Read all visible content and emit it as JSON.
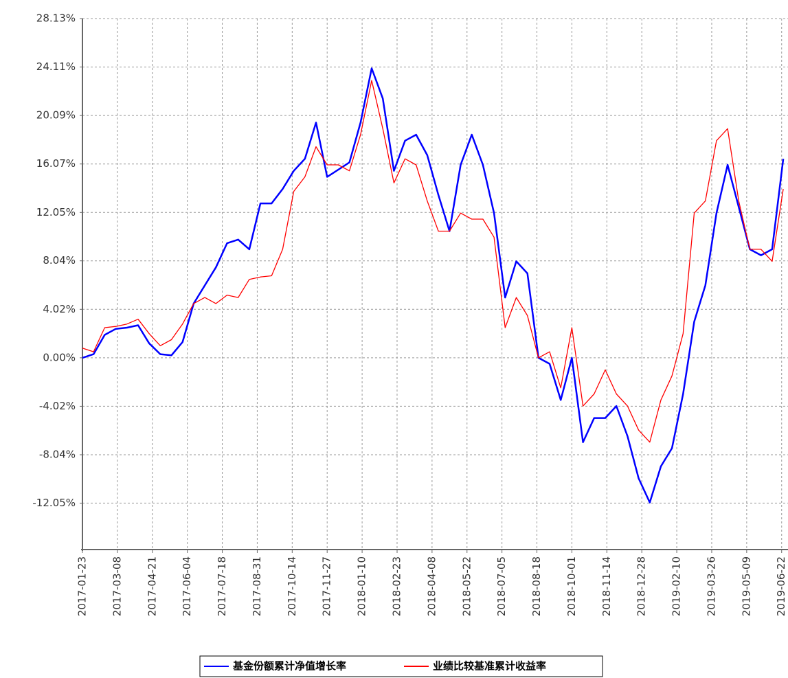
{
  "chart_data": {
    "type": "line",
    "x": [
      "2017-01-23",
      "2017-02-06",
      "2017-02-20",
      "2017-03-06",
      "2017-03-20",
      "2017-04-03",
      "2017-04-17",
      "2017-05-01",
      "2017-05-15",
      "2017-05-29",
      "2017-06-12",
      "2017-06-26",
      "2017-07-10",
      "2017-07-24",
      "2017-08-07",
      "2017-08-21",
      "2017-09-04",
      "2017-09-18",
      "2017-10-02",
      "2017-10-16",
      "2017-10-30",
      "2017-11-13",
      "2017-11-27",
      "2017-12-11",
      "2017-12-25",
      "2018-01-08",
      "2018-01-22",
      "2018-02-05",
      "2018-02-19",
      "2018-03-05",
      "2018-03-19",
      "2018-04-02",
      "2018-04-16",
      "2018-04-30",
      "2018-05-14",
      "2018-05-28",
      "2018-06-11",
      "2018-06-25",
      "2018-07-09",
      "2018-07-23",
      "2018-08-06",
      "2018-08-20",
      "2018-09-03",
      "2018-09-17",
      "2018-10-01",
      "2018-10-15",
      "2018-10-29",
      "2018-11-12",
      "2018-11-26",
      "2018-12-10",
      "2018-12-24",
      "2019-01-07",
      "2019-01-21",
      "2019-02-04",
      "2019-02-18",
      "2019-03-04",
      "2019-03-18",
      "2019-04-01",
      "2019-04-15",
      "2019-04-29",
      "2019-05-13",
      "2019-05-27",
      "2019-06-10",
      "2019-06-24"
    ],
    "series": [
      {
        "name": "基金份额累计净值增长率",
        "color": "#0000ff",
        "width": 2.5,
        "values": [
          0,
          0.3,
          1.9,
          2.4,
          2.5,
          2.7,
          1.2,
          0.3,
          0.2,
          1.3,
          4.5,
          6,
          7.5,
          9.5,
          9.8,
          9,
          12.8,
          12.8,
          14,
          15.5,
          16.5,
          19.5,
          15,
          15.6,
          16.2,
          19.5,
          24,
          21.5,
          15.5,
          18,
          18.5,
          16.8,
          13.5,
          10.5,
          16,
          18.5,
          16,
          12,
          5,
          8,
          7,
          0,
          -0.5,
          -3.5,
          0,
          -7,
          -5,
          -5,
          -4,
          -6.5,
          -10,
          -12,
          -9,
          -7.5,
          -3,
          3,
          6,
          12,
          16,
          12.5,
          9,
          8.5,
          9,
          16.5
        ]
      },
      {
        "name": "业绩比较基准累计收益率",
        "color": "#ff0000",
        "width": 1.3,
        "values": [
          0.8,
          0.5,
          2.5,
          2.6,
          2.8,
          3.2,
          2,
          1,
          1.5,
          2.8,
          4.5,
          5,
          4.5,
          5.2,
          5,
          6.5,
          6.7,
          6.8,
          9,
          13.8,
          15,
          17.5,
          16,
          16,
          15.5,
          18.5,
          23,
          19,
          14.5,
          16.5,
          16,
          13,
          10.5,
          10.5,
          12,
          11.5,
          11.5,
          10,
          2.5,
          5,
          3.5,
          0,
          0.5,
          -2.5,
          2.5,
          -4,
          -3,
          -1,
          -3,
          -4,
          -6,
          -7,
          -3.5,
          -1.5,
          2,
          12,
          13,
          18,
          19,
          13,
          9,
          9,
          8,
          14
        ]
      }
    ],
    "xlim": [
      "2017-01-23",
      "2019-06-30"
    ],
    "xticks": [
      "2017-01-23",
      "2017-03-08",
      "2017-04-21",
      "2017-06-04",
      "2017-07-18",
      "2017-08-31",
      "2017-10-14",
      "2017-11-27",
      "2018-01-10",
      "2018-02-23",
      "2018-04-08",
      "2018-05-22",
      "2018-07-05",
      "2018-08-18",
      "2018-10-01",
      "2018-11-14",
      "2018-12-28",
      "2019-02-10",
      "2019-03-26",
      "2019-05-09",
      "2019-06-22"
    ],
    "ylim": [
      -15.9,
      28.13
    ],
    "yticks": [
      {
        "value": 28.13,
        "label": "28.13%"
      },
      {
        "value": 24.11,
        "label": "24.11%"
      },
      {
        "value": 20.09,
        "label": "20.09%"
      },
      {
        "value": 16.07,
        "label": "16.07%"
      },
      {
        "value": 12.05,
        "label": "12.05%"
      },
      {
        "value": 8.04,
        "label": "8.04%"
      },
      {
        "value": 4.02,
        "label": "4.02%"
      },
      {
        "value": 0,
        "label": "0.00%"
      },
      {
        "value": -4.02,
        "label": "-4.02%"
      },
      {
        "value": -8.04,
        "label": "-8.04%"
      },
      {
        "value": -12.05,
        "label": "-12.05%"
      }
    ],
    "grid": true,
    "legend": "bottom"
  }
}
